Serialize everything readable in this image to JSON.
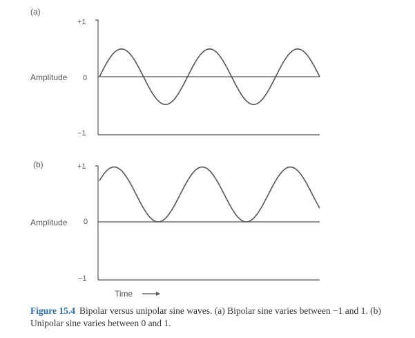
{
  "chart_data": [
    {
      "type": "line",
      "panel_label": "(a)",
      "ylabel": "Amplitude",
      "yticks": [
        "+1",
        "0",
        "−1"
      ],
      "ylim": [
        -1,
        1
      ],
      "grid": false,
      "series": [
        {
          "waveform": "sine",
          "cycles": 2.5,
          "phase_deg": 0,
          "min": -1,
          "max": 1
        }
      ]
    },
    {
      "type": "line",
      "panel_label": "(b)",
      "ylabel": "Amplitude",
      "xlabel": "Time",
      "yticks": [
        "+1",
        "0",
        "−1"
      ],
      "ylim": [
        -1,
        1
      ],
      "grid": false,
      "series": [
        {
          "waveform": "sine",
          "cycles": 2.5,
          "phase_deg": 30,
          "min": 0,
          "max": 1
        }
      ]
    }
  ],
  "caption": {
    "figure_number": "Figure 15.4",
    "text": "Bipolar versus unipolar sine waves. (a) Bipolar sine varies between −1 and 1. (b) Unipolar sine varies between 0 and 1."
  },
  "colors": {
    "ink": "#555555",
    "caption_accent": "#2a6fb5"
  }
}
